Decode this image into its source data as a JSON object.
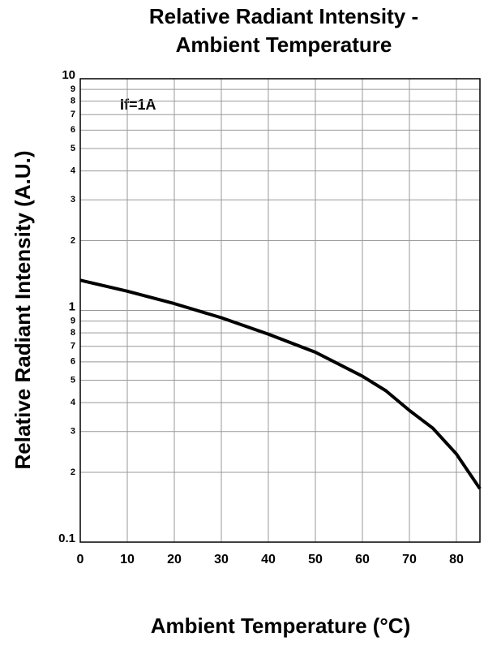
{
  "chart_data": {
    "type": "line",
    "title": [
      "Relative Radiant Intensity -",
      "Ambient Temperature"
    ],
    "x_label": "Ambient Temperature (°C)",
    "y_label": "Relative Radiant Intensity (A.U.)",
    "annotation": "If=1A",
    "x": [
      0,
      10,
      20,
      30,
      40,
      50,
      60,
      65,
      70,
      75,
      80,
      85
    ],
    "series": [
      {
        "name": "If=1A",
        "color": "#000000",
        "values": [
          1.35,
          1.21,
          1.07,
          0.93,
          0.79,
          0.66,
          0.52,
          0.45,
          0.37,
          0.31,
          0.24,
          0.17
        ]
      }
    ],
    "xlim": [
      0,
      85
    ],
    "xticks": [
      0,
      10,
      20,
      30,
      40,
      50,
      60,
      70,
      80
    ],
    "ylim": [
      0.1,
      10
    ],
    "log_y": true,
    "grid": true,
    "yticks": [
      0.1,
      {
        "value": 0.2,
        "label": "2"
      },
      {
        "value": 0.3,
        "label": "3"
      },
      {
        "value": 0.4,
        "label": "4"
      },
      {
        "value": 0.5,
        "label": "5"
      },
      {
        "value": 0.6,
        "label": "6"
      },
      {
        "value": 0.7,
        "label": "7"
      },
      {
        "value": 0.8,
        "label": "8"
      },
      {
        "value": 0.9,
        "label": "9"
      },
      1,
      {
        "value": 2,
        "label": "2"
      },
      {
        "value": 3,
        "label": "3"
      },
      {
        "value": 4,
        "label": "4"
      },
      {
        "value": 5,
        "label": "5"
      },
      {
        "value": 6,
        "label": "6"
      },
      {
        "value": 7,
        "label": "7"
      },
      {
        "value": 8,
        "label": "8"
      },
      {
        "value": 9,
        "label": "9"
      },
      10
    ]
  }
}
